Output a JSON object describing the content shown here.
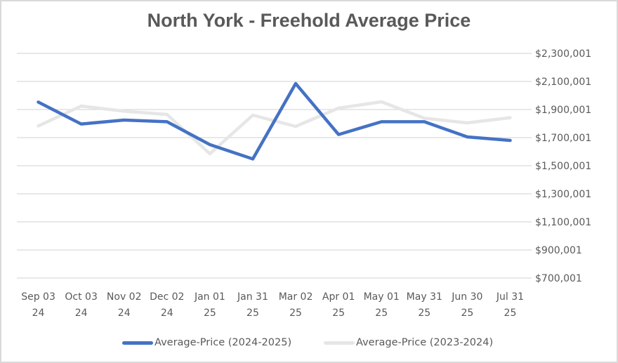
{
  "chart_data": {
    "type": "line",
    "title": "North York - Freehold Average Price",
    "xlabel": "",
    "ylabel": "",
    "ylim": [
      700001,
      2300001
    ],
    "y_ticks": [
      "$2,300,001",
      "$2,100,001",
      "$1,900,001",
      "$1,700,001",
      "$1,500,001",
      "$1,300,001",
      "$1,100,001",
      "$900,001",
      "$700,001"
    ],
    "y_tick_values": [
      2300001,
      2100001,
      1900001,
      1700001,
      1500001,
      1300001,
      1100001,
      900001,
      700001
    ],
    "y_axis_position": "right",
    "grid": true,
    "legend_position": "bottom",
    "categories": [
      {
        "line1": "Sep 03",
        "line2": "24"
      },
      {
        "line1": "Oct 03",
        "line2": "24"
      },
      {
        "line1": "Nov 02",
        "line2": "24"
      },
      {
        "line1": "Dec 02",
        "line2": "24"
      },
      {
        "line1": "Jan 01",
        "line2": "25"
      },
      {
        "line1": "Jan 31",
        "line2": "25"
      },
      {
        "line1": "Mar 02",
        "line2": "25"
      },
      {
        "line1": "Apr 01",
        "line2": "25"
      },
      {
        "line1": "May 01",
        "line2": "25"
      },
      {
        "line1": "May 31",
        "line2": "25"
      },
      {
        "line1": "Jun 30",
        "line2": "25"
      },
      {
        "line1": "Jul 31",
        "line2": "25"
      }
    ],
    "series": [
      {
        "name": "Average-Price (2024-2025)",
        "color": "#4472c4",
        "values": [
          1953000,
          1797000,
          1825000,
          1813000,
          1650000,
          1548000,
          2085000,
          1722000,
          1813000,
          1813000,
          1705000,
          1680000
        ]
      },
      {
        "name": "Average-Price (2023-2024)",
        "color": "#e7e6e6",
        "values": [
          1783000,
          1925000,
          1888000,
          1865000,
          1585000,
          1860000,
          1780000,
          1910000,
          1955000,
          1838000,
          1805000,
          1842000
        ]
      }
    ]
  }
}
